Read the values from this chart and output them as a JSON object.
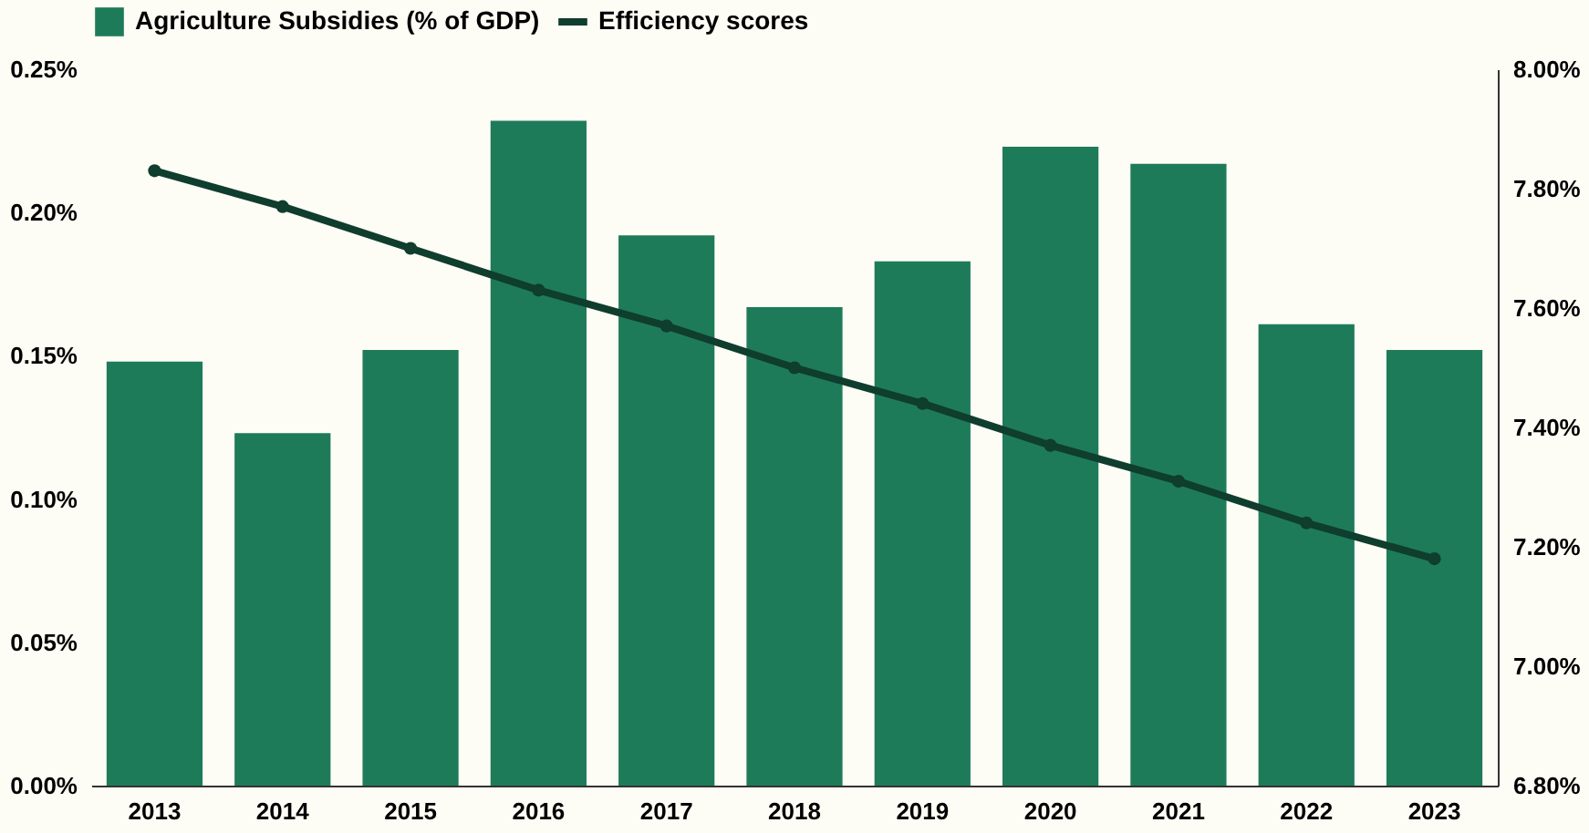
{
  "chart_data": {
    "type": "bar",
    "categories": [
      "2013",
      "2014",
      "2015",
      "2016",
      "2017",
      "2018",
      "2019",
      "2020",
      "2021",
      "2022",
      "2023"
    ],
    "series": [
      {
        "name": "Agriculture Subsidies (% of GDP)",
        "color": "#1e7b5a",
        "values": [
          0.148,
          0.123,
          0.152,
          0.232,
          0.192,
          0.167,
          0.183,
          0.223,
          0.217,
          0.161,
          0.152
        ]
      },
      {
        "name": "Efficiency scores",
        "type": "line",
        "axis": "y2",
        "color": "#0f3d2e",
        "marker": "circle",
        "values": [
          7.83,
          7.77,
          7.7,
          7.63,
          7.57,
          7.5,
          7.44,
          7.37,
          7.31,
          7.24,
          7.18
        ]
      }
    ],
    "ylim": [
      0,
      0.25
    ],
    "yticks": [
      {
        "value": 0,
        "label": "0.00%"
      },
      {
        "value": 0.05,
        "label": "0.05%"
      },
      {
        "value": 0.1,
        "label": "0.10%"
      },
      {
        "value": 0.15,
        "label": "0.15%"
      },
      {
        "value": 0.2,
        "label": "0.20%"
      },
      {
        "value": 0.25,
        "label": "0.25%"
      }
    ],
    "y2lim": [
      6.8,
      8.0
    ],
    "y2ticks": [
      {
        "value": 6.8,
        "label": "6.80%"
      },
      {
        "value": 7.0,
        "label": "7.00%"
      },
      {
        "value": 7.2,
        "label": "7.20%"
      },
      {
        "value": 7.4,
        "label": "7.40%"
      },
      {
        "value": 7.6,
        "label": "7.60%"
      },
      {
        "value": 7.8,
        "label": "7.80%"
      },
      {
        "value": 8.0,
        "label": "8.00%"
      }
    ],
    "grid": false,
    "legend": "top"
  }
}
